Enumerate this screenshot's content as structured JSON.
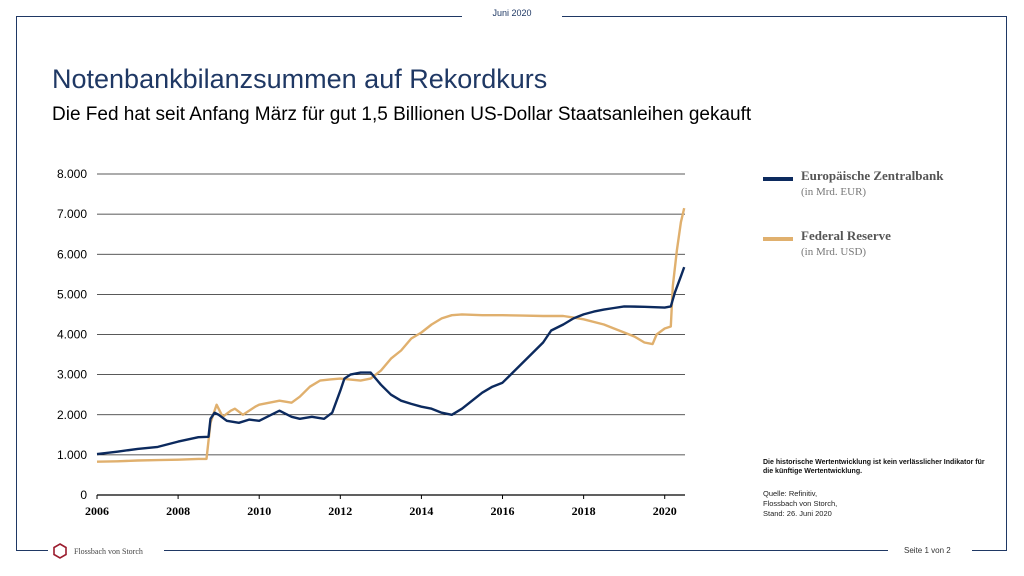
{
  "header": {
    "date": "Juni 2020"
  },
  "title": "Notenbankbilanzsummen  auf Rekordkurs",
  "subtitle": "Die Fed hat seit Anfang März für gut 1,5 Billionen US-Dollar Staatsanleihen gekauft",
  "logo": {
    "text": "Flossbach von Storch"
  },
  "footer": {
    "page": "Seite 1 von 2"
  },
  "legend": [
    {
      "name": "Europäische Zentralbank",
      "unit": "(in Mrd. EUR)",
      "color": "#0c2a5e"
    },
    {
      "name": "Federal Reserve",
      "unit": "(in Mrd. USD)",
      "color": "#e0b06e"
    }
  ],
  "note": "Die historische Wertentwicklung ist kein verlässlicher Indikator für die künftige Wertentwicklung.",
  "source": [
    "Quelle: Refinitiv,",
    "Flossbach von Storch,",
    "Stand: 26. Juni 2020"
  ],
  "chart_data": {
    "type": "line",
    "xlim": [
      2006,
      2020.5
    ],
    "ylim": [
      0,
      8000
    ],
    "x_ticks": [
      "2006",
      "2008",
      "2010",
      "2012",
      "2014",
      "2016",
      "2018",
      "2020"
    ],
    "y_ticks": [
      "0",
      "1.000",
      "2.000",
      "3.000",
      "4.000",
      "5.000",
      "6.000",
      "7.000",
      "8.000"
    ],
    "grid": "horizontal",
    "series": [
      {
        "name": "Europäische Zentralbank",
        "color": "#0c2a5e",
        "points": [
          [
            2006.0,
            1020
          ],
          [
            2006.5,
            1080
          ],
          [
            2007.0,
            1150
          ],
          [
            2007.5,
            1200
          ],
          [
            2008.0,
            1330
          ],
          [
            2008.5,
            1440
          ],
          [
            2008.75,
            1450
          ],
          [
            2008.8,
            1900
          ],
          [
            2008.9,
            2050
          ],
          [
            2009.0,
            2000
          ],
          [
            2009.2,
            1850
          ],
          [
            2009.5,
            1800
          ],
          [
            2009.75,
            1880
          ],
          [
            2010.0,
            1850
          ],
          [
            2010.4,
            2050
          ],
          [
            2010.5,
            2100
          ],
          [
            2010.8,
            1950
          ],
          [
            2011.0,
            1900
          ],
          [
            2011.3,
            1950
          ],
          [
            2011.6,
            1900
          ],
          [
            2011.8,
            2050
          ],
          [
            2012.0,
            2600
          ],
          [
            2012.1,
            2900
          ],
          [
            2012.25,
            3000
          ],
          [
            2012.5,
            3050
          ],
          [
            2012.75,
            3050
          ],
          [
            2013.0,
            2750
          ],
          [
            2013.25,
            2500
          ],
          [
            2013.5,
            2350
          ],
          [
            2013.75,
            2270
          ],
          [
            2014.0,
            2200
          ],
          [
            2014.25,
            2150
          ],
          [
            2014.5,
            2050
          ],
          [
            2014.75,
            2000
          ],
          [
            2015.0,
            2150
          ],
          [
            2015.25,
            2350
          ],
          [
            2015.5,
            2550
          ],
          [
            2015.75,
            2700
          ],
          [
            2016.0,
            2800
          ],
          [
            2016.25,
            3050
          ],
          [
            2016.5,
            3300
          ],
          [
            2016.75,
            3550
          ],
          [
            2017.0,
            3800
          ],
          [
            2017.2,
            4100
          ],
          [
            2017.5,
            4250
          ],
          [
            2017.75,
            4400
          ],
          [
            2018.0,
            4500
          ],
          [
            2018.25,
            4570
          ],
          [
            2018.5,
            4620
          ],
          [
            2018.75,
            4660
          ],
          [
            2019.0,
            4700
          ],
          [
            2019.5,
            4690
          ],
          [
            2019.75,
            4680
          ],
          [
            2020.0,
            4670
          ],
          [
            2020.15,
            4700
          ],
          [
            2020.25,
            5050
          ],
          [
            2020.4,
            5450
          ],
          [
            2020.48,
            5680
          ]
        ]
      },
      {
        "name": "Federal Reserve",
        "color": "#e0b06e",
        "points": [
          [
            2006.0,
            830
          ],
          [
            2006.5,
            840
          ],
          [
            2007.0,
            860
          ],
          [
            2007.5,
            870
          ],
          [
            2008.0,
            880
          ],
          [
            2008.5,
            900
          ],
          [
            2008.7,
            900
          ],
          [
            2008.8,
            1800
          ],
          [
            2008.95,
            2250
          ],
          [
            2009.1,
            1950
          ],
          [
            2009.3,
            2100
          ],
          [
            2009.4,
            2150
          ],
          [
            2009.6,
            2000
          ],
          [
            2009.9,
            2200
          ],
          [
            2010.0,
            2250
          ],
          [
            2010.5,
            2350
          ],
          [
            2010.8,
            2300
          ],
          [
            2011.0,
            2450
          ],
          [
            2011.25,
            2700
          ],
          [
            2011.5,
            2850
          ],
          [
            2011.75,
            2880
          ],
          [
            2012.0,
            2900
          ],
          [
            2012.5,
            2850
          ],
          [
            2012.75,
            2900
          ],
          [
            2013.0,
            3100
          ],
          [
            2013.25,
            3400
          ],
          [
            2013.5,
            3600
          ],
          [
            2013.75,
            3900
          ],
          [
            2014.0,
            4050
          ],
          [
            2014.25,
            4250
          ],
          [
            2014.5,
            4400
          ],
          [
            2014.75,
            4480
          ],
          [
            2015.0,
            4500
          ],
          [
            2015.5,
            4480
          ],
          [
            2016.0,
            4480
          ],
          [
            2016.5,
            4470
          ],
          [
            2017.0,
            4460
          ],
          [
            2017.5,
            4460
          ],
          [
            2017.75,
            4420
          ],
          [
            2018.0,
            4380
          ],
          [
            2018.5,
            4250
          ],
          [
            2018.75,
            4150
          ],
          [
            2019.0,
            4050
          ],
          [
            2019.25,
            3950
          ],
          [
            2019.5,
            3800
          ],
          [
            2019.7,
            3760
          ],
          [
            2019.8,
            4000
          ],
          [
            2020.0,
            4150
          ],
          [
            2020.15,
            4200
          ],
          [
            2020.2,
            5200
          ],
          [
            2020.3,
            6100
          ],
          [
            2020.4,
            6800
          ],
          [
            2020.48,
            7150
          ]
        ]
      }
    ]
  }
}
